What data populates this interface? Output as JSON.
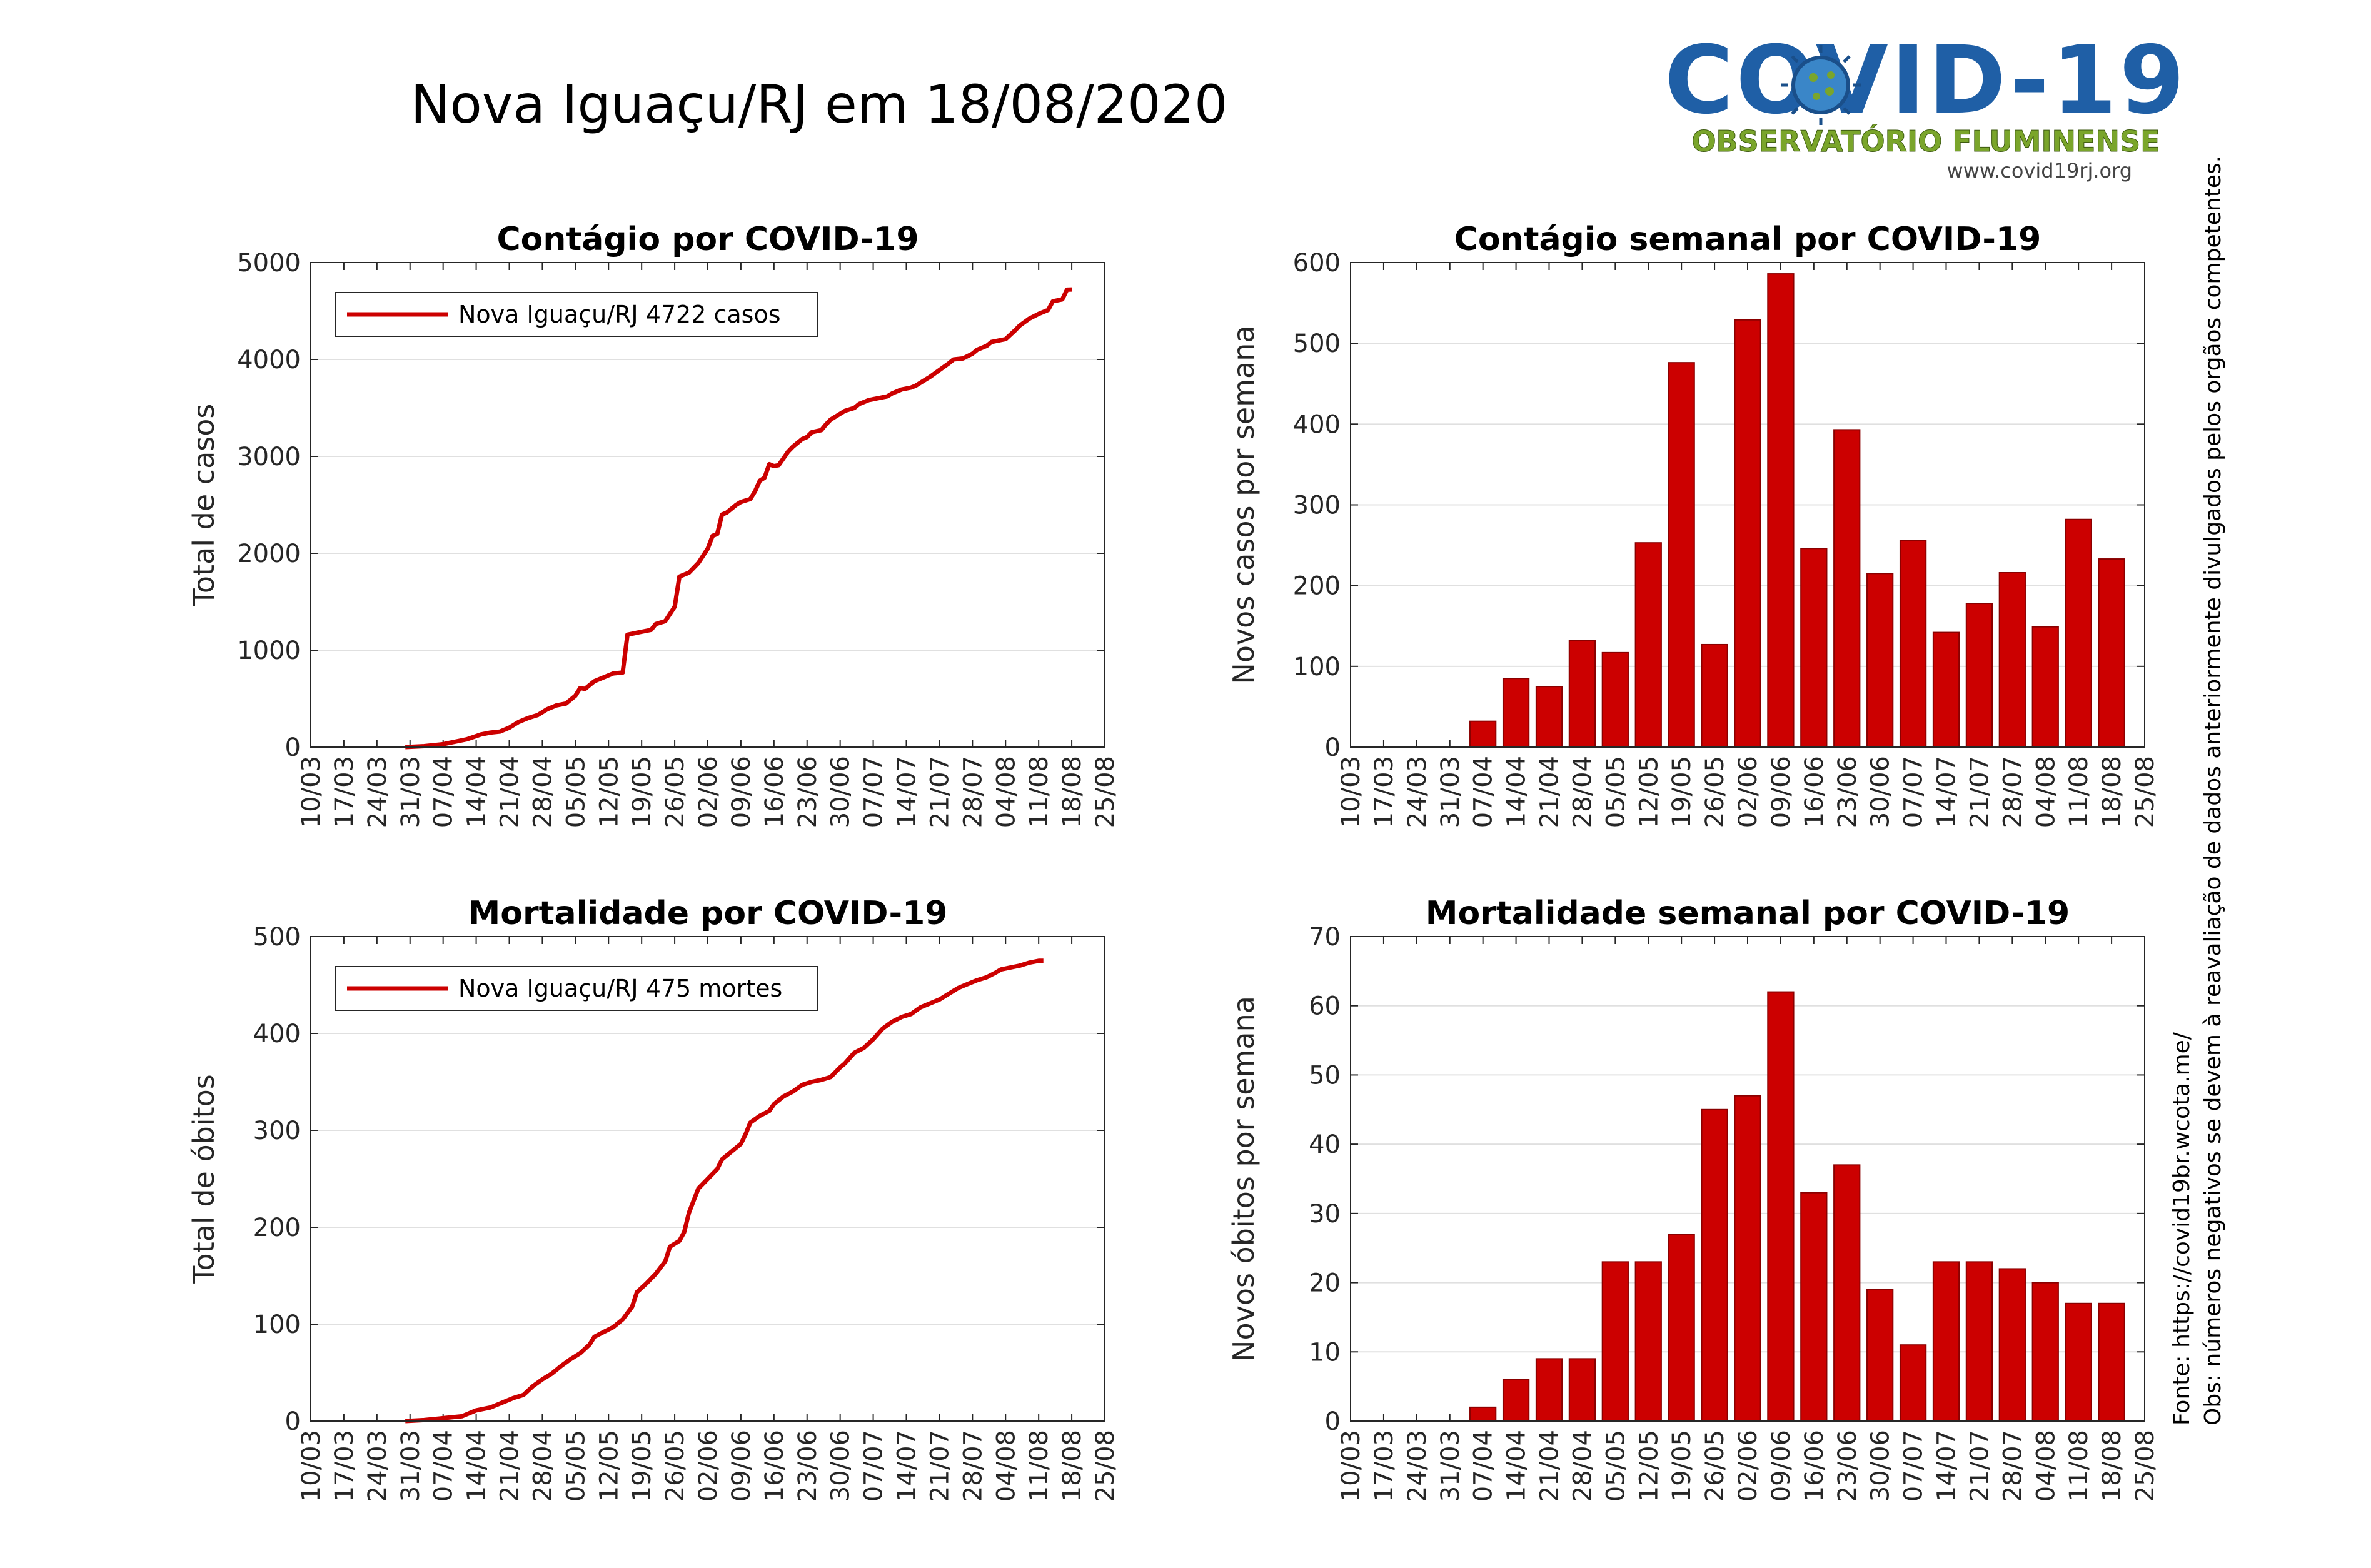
{
  "page": {
    "title": "Nova Iguaçu/RJ em 18/08/2020",
    "logo": {
      "title": "COVID-19",
      "subtitle": "OBSERVATÓRIO FLUMINENSE",
      "url": "www.covid19rj.org",
      "icon": "virus-icon"
    },
    "notes": [
      "Fonte: https://covid19br.wcota.me/",
      "Obs: números negativos se devem à reavaliação de dados anteriormente divulgados pelos orgãos competentes."
    ],
    "colors": {
      "series": "#cc0000",
      "grid": "#e0e0e0",
      "logo_blue": "#1f5fa6",
      "logo_green": "#7aa52b"
    }
  },
  "chart_data": [
    {
      "id": "cases-total",
      "type": "line",
      "title": "Contágio por COVID-19",
      "ylabel": "Total de casos",
      "ylim": [
        0,
        5000
      ],
      "yticks": [
        0,
        1000,
        2000,
        3000,
        4000,
        5000
      ],
      "x_ticks": [
        "10/03",
        "17/03",
        "24/03",
        "31/03",
        "07/04",
        "14/04",
        "21/04",
        "28/04",
        "05/05",
        "12/05",
        "19/05",
        "26/05",
        "02/06",
        "09/06",
        "16/06",
        "23/06",
        "30/06",
        "07/07",
        "14/07",
        "21/07",
        "28/07",
        "04/08",
        "11/08",
        "18/08",
        "25/08"
      ],
      "legend": "Nova Iguaçu/RJ  4722 casos",
      "series": [
        {
          "name": "Nova Iguaçu/RJ",
          "points": [
            [
              20,
              0
            ],
            [
              24,
              10
            ],
            [
              28,
              30
            ],
            [
              33,
              80
            ],
            [
              36,
              130
            ],
            [
              38,
              150
            ],
            [
              40,
              160
            ],
            [
              42,
              200
            ],
            [
              44,
              260
            ],
            [
              46,
              300
            ],
            [
              48,
              330
            ],
            [
              50,
              390
            ],
            [
              52,
              430
            ],
            [
              54,
              450
            ],
            [
              56,
              530
            ],
            [
              57,
              610
            ],
            [
              58,
              600
            ],
            [
              60,
              680
            ],
            [
              61,
              700
            ],
            [
              63,
              740
            ],
            [
              64,
              760
            ],
            [
              66,
              770
            ],
            [
              67,
              1160
            ],
            [
              70,
              1190
            ],
            [
              72,
              1210
            ],
            [
              73,
              1270
            ],
            [
              75,
              1300
            ],
            [
              77,
              1450
            ],
            [
              78,
              1760
            ],
            [
              80,
              1800
            ],
            [
              82,
              1900
            ],
            [
              84,
              2050
            ],
            [
              85,
              2180
            ],
            [
              86,
              2200
            ],
            [
              87,
              2400
            ],
            [
              88,
              2420
            ],
            [
              90,
              2500
            ],
            [
              91,
              2530
            ],
            [
              93,
              2560
            ],
            [
              94,
              2640
            ],
            [
              95,
              2750
            ],
            [
              96,
              2780
            ],
            [
              97,
              2920
            ],
            [
              98,
              2900
            ],
            [
              99,
              2910
            ],
            [
              100,
              2980
            ],
            [
              101,
              3050
            ],
            [
              102,
              3100
            ],
            [
              104,
              3180
            ],
            [
              105,
              3200
            ],
            [
              106,
              3250
            ],
            [
              108,
              3270
            ],
            [
              109,
              3330
            ],
            [
              110,
              3380
            ],
            [
              112,
              3440
            ],
            [
              113,
              3470
            ],
            [
              115,
              3500
            ],
            [
              116,
              3540
            ],
            [
              118,
              3580
            ],
            [
              120,
              3600
            ],
            [
              122,
              3620
            ],
            [
              123,
              3650
            ],
            [
              125,
              3690
            ],
            [
              127,
              3710
            ],
            [
              128,
              3730
            ],
            [
              130,
              3790
            ],
            [
              131,
              3820
            ],
            [
              133,
              3890
            ],
            [
              135,
              3960
            ],
            [
              136,
              4000
            ],
            [
              138,
              4010
            ],
            [
              140,
              4060
            ],
            [
              141,
              4100
            ],
            [
              143,
              4140
            ],
            [
              144,
              4180
            ],
            [
              146,
              4200
            ],
            [
              147,
              4210
            ],
            [
              149,
              4300
            ],
            [
              150,
              4350
            ],
            [
              152,
              4420
            ],
            [
              154,
              4470
            ],
            [
              156,
              4510
            ],
            [
              157,
              4600
            ],
            [
              159,
              4620
            ],
            [
              160,
              4720
            ],
            [
              161,
              4722
            ]
          ]
        }
      ]
    },
    {
      "id": "cases-weekly",
      "type": "bar",
      "title": "Contágio semanal por COVID-19",
      "ylabel": "Novos casos por semana",
      "ylim": [
        0,
        600
      ],
      "yticks": [
        0,
        100,
        200,
        300,
        400,
        500,
        600
      ],
      "x_ticks": [
        "10/03",
        "17/03",
        "24/03",
        "31/03",
        "07/04",
        "14/04",
        "21/04",
        "28/04",
        "05/05",
        "12/05",
        "19/05",
        "26/05",
        "02/06",
        "09/06",
        "16/06",
        "23/06",
        "30/06",
        "07/07",
        "14/07",
        "21/07",
        "28/07",
        "04/08",
        "11/08",
        "18/08",
        "25/08"
      ],
      "categories": [
        "07/04",
        "14/04",
        "21/04",
        "28/04",
        "05/05",
        "12/05",
        "19/05",
        "26/05",
        "02/06",
        "09/06",
        "16/06",
        "23/06",
        "30/06",
        "07/07",
        "14/07",
        "21/07",
        "28/07",
        "04/08",
        "11/08",
        "18/08"
      ],
      "values": [
        32,
        85,
        75,
        132,
        117,
        253,
        476,
        127,
        529,
        586,
        246,
        393,
        215,
        256,
        142,
        178,
        216,
        149,
        282,
        233
      ]
    },
    {
      "id": "deaths-total",
      "type": "line",
      "title": "Mortalidade por COVID-19",
      "ylabel": "Total de óbitos",
      "ylim": [
        0,
        500
      ],
      "yticks": [
        0,
        100,
        200,
        300,
        400,
        500
      ],
      "x_ticks": [
        "10/03",
        "17/03",
        "24/03",
        "31/03",
        "07/04",
        "14/04",
        "21/04",
        "28/04",
        "05/05",
        "12/05",
        "19/05",
        "26/05",
        "02/06",
        "09/06",
        "16/06",
        "23/06",
        "30/06",
        "07/07",
        "14/07",
        "21/07",
        "28/07",
        "04/08",
        "11/08",
        "18/08",
        "25/08"
      ],
      "legend": "Nova Iguaçu/RJ  475 mortes",
      "series": [
        {
          "name": "Nova Iguaçu/RJ",
          "points": [
            [
              20,
              0
            ],
            [
              24,
              1
            ],
            [
              28,
              3
            ],
            [
              32,
              5
            ],
            [
              35,
              11
            ],
            [
              38,
              14
            ],
            [
              41,
              20
            ],
            [
              43,
              24
            ],
            [
              45,
              27
            ],
            [
              47,
              36
            ],
            [
              49,
              43
            ],
            [
              51,
              49
            ],
            [
              53,
              57
            ],
            [
              55,
              64
            ],
            [
              57,
              70
            ],
            [
              59,
              79
            ],
            [
              60,
              87
            ],
            [
              62,
              92
            ],
            [
              64,
              97
            ],
            [
              66,
              105
            ],
            [
              68,
              118
            ],
            [
              69,
              133
            ],
            [
              71,
              142
            ],
            [
              73,
              152
            ],
            [
              75,
              165
            ],
            [
              76,
              180
            ],
            [
              78,
              186
            ],
            [
              79,
              195
            ],
            [
              80,
              215
            ],
            [
              82,
              240
            ],
            [
              84,
              250
            ],
            [
              86,
              260
            ],
            [
              87,
              270
            ],
            [
              89,
              278
            ],
            [
              91,
              286
            ],
            [
              92,
              296
            ],
            [
              93,
              308
            ],
            [
              95,
              315
            ],
            [
              97,
              320
            ],
            [
              98,
              327
            ],
            [
              100,
              335
            ],
            [
              102,
              340
            ],
            [
              104,
              347
            ],
            [
              106,
              350
            ],
            [
              108,
              352
            ],
            [
              110,
              355
            ],
            [
              112,
              365
            ],
            [
              113,
              369
            ],
            [
              115,
              380
            ],
            [
              117,
              385
            ],
            [
              119,
              394
            ],
            [
              121,
              405
            ],
            [
              123,
              412
            ],
            [
              125,
              417
            ],
            [
              127,
              420
            ],
            [
              129,
              427
            ],
            [
              131,
              431
            ],
            [
              133,
              435
            ],
            [
              135,
              441
            ],
            [
              137,
              447
            ],
            [
              139,
              451
            ],
            [
              141,
              455
            ],
            [
              143,
              458
            ],
            [
              145,
              463
            ],
            [
              146,
              466
            ],
            [
              148,
              468
            ],
            [
              150,
              470
            ],
            [
              152,
              473
            ],
            [
              154,
              475
            ],
            [
              155,
              475
            ]
          ]
        }
      ]
    },
    {
      "id": "deaths-weekly",
      "type": "bar",
      "title": "Mortalidade semanal por COVID-19",
      "ylabel": "Novos óbitos por semana",
      "ylim": [
        0,
        70
      ],
      "yticks": [
        0,
        10,
        20,
        30,
        40,
        50,
        60,
        70
      ],
      "x_ticks": [
        "10/03",
        "17/03",
        "24/03",
        "31/03",
        "07/04",
        "14/04",
        "21/04",
        "28/04",
        "05/05",
        "12/05",
        "19/05",
        "26/05",
        "02/06",
        "09/06",
        "16/06",
        "23/06",
        "30/06",
        "07/07",
        "14/07",
        "21/07",
        "28/07",
        "04/08",
        "11/08",
        "18/08",
        "25/08"
      ],
      "categories": [
        "07/04",
        "14/04",
        "21/04",
        "28/04",
        "05/05",
        "12/05",
        "19/05",
        "26/05",
        "02/06",
        "09/06",
        "16/06",
        "23/06",
        "30/06",
        "07/07",
        "14/07",
        "21/07",
        "28/07",
        "04/08",
        "11/08",
        "18/08"
      ],
      "values": [
        2,
        6,
        9,
        9,
        23,
        23,
        27,
        45,
        47,
        62,
        33,
        37,
        19,
        11,
        23,
        23,
        22,
        20,
        17,
        17
      ]
    }
  ]
}
